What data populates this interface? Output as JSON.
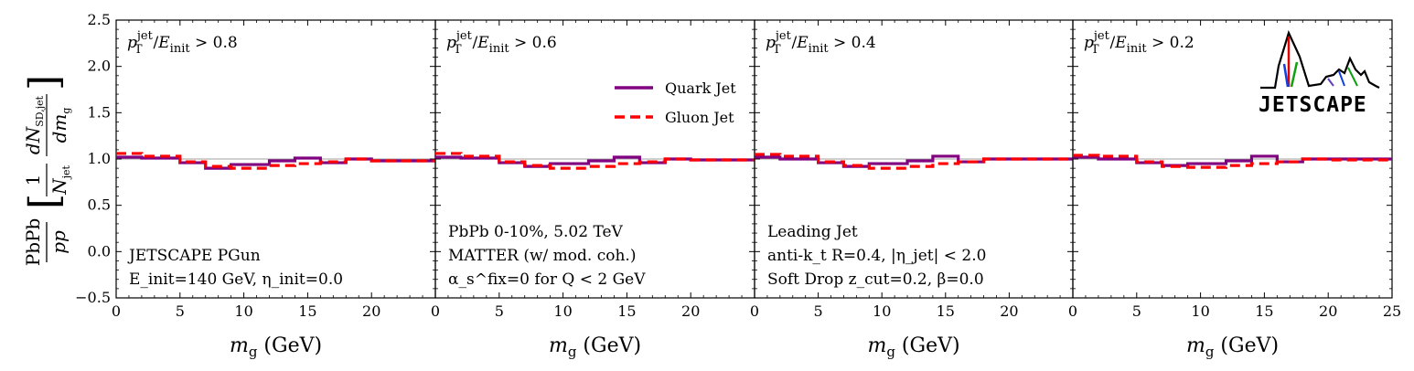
{
  "figure": {
    "y_label_main": "PbPb / pp",
    "y_label_bracket": "[ 1/N_jet dN_SD,jet/dm_g ]",
    "logo_text": "JETSCAPE"
  },
  "legend": {
    "quark_label": "Quark Jet",
    "gluon_label": "Gluon Jet"
  },
  "colors": {
    "quark": "#800080",
    "gluon": "#ff0000",
    "reference_line": "#a0a0a0"
  },
  "chart_data": [
    {
      "type": "line",
      "panel_title": "p_T^jet/E_init > 0.8",
      "xlabel": "m_g (GeV)",
      "xlim": [
        0,
        25
      ],
      "ylim": [
        -0.5,
        2.5
      ],
      "xticks": [
        "0",
        "5",
        "10",
        "15",
        "20"
      ],
      "yticks": [
        "−0.5",
        "0.0",
        "0.5",
        "1.0",
        "1.5",
        "2.0",
        "2.5"
      ],
      "bin_edges": [
        0,
        2,
        5,
        7,
        9,
        12,
        14,
        16,
        18,
        20,
        25
      ],
      "series": [
        {
          "name": "Quark Jet",
          "values": [
            1.02,
            1.01,
            0.96,
            0.9,
            0.94,
            0.98,
            1.01,
            0.96,
            1.0,
            0.98
          ]
        },
        {
          "name": "Gluon Jet",
          "values": [
            1.06,
            1.03,
            0.97,
            0.92,
            0.9,
            0.93,
            0.95,
            0.97,
            1.0,
            0.98
          ]
        }
      ],
      "annotations": [
        "JETSCAPE PGun",
        "E_init=140 GeV, η_init=0.0"
      ]
    },
    {
      "type": "line",
      "panel_title": "p_T^jet/E_init > 0.6",
      "xlabel": "m_g (GeV)",
      "xlim": [
        0,
        25
      ],
      "ylim": [
        -0.5,
        2.5
      ],
      "xticks": [
        "0",
        "5",
        "10",
        "15",
        "20"
      ],
      "bin_edges": [
        0,
        2,
        5,
        7,
        9,
        12,
        14,
        16,
        18,
        20,
        25
      ],
      "series": [
        {
          "name": "Quark Jet",
          "values": [
            1.02,
            1.01,
            0.96,
            0.92,
            0.95,
            0.98,
            1.02,
            0.96,
            1.0,
            0.99
          ]
        },
        {
          "name": "Gluon Jet",
          "values": [
            1.06,
            1.03,
            0.97,
            0.93,
            0.9,
            0.92,
            0.95,
            0.97,
            1.0,
            0.99
          ]
        }
      ],
      "annotations": [
        "PbPb 0-10%, 5.02 TeV",
        "MATTER (w/ mod. coh.)",
        "α_s^fix=0 for Q < 2 GeV"
      ]
    },
    {
      "type": "line",
      "panel_title": "p_T^jet/E_init > 0.4",
      "xlabel": "m_g (GeV)",
      "xlim": [
        0,
        25
      ],
      "ylim": [
        -0.5,
        2.5
      ],
      "xticks": [
        "0",
        "5",
        "10",
        "15",
        "20"
      ],
      "bin_edges": [
        0,
        2,
        5,
        7,
        9,
        12,
        14,
        16,
        18,
        20,
        25
      ],
      "series": [
        {
          "name": "Quark Jet",
          "values": [
            1.02,
            1.0,
            0.96,
            0.92,
            0.95,
            0.98,
            1.03,
            0.97,
            1.0,
            1.0
          ]
        },
        {
          "name": "Gluon Jet",
          "values": [
            1.05,
            1.03,
            0.97,
            0.93,
            0.9,
            0.92,
            0.95,
            0.97,
            1.0,
            1.0
          ]
        }
      ],
      "annotations": [
        "Leading Jet",
        "anti-k_t R=0.4, |η_jet| < 2.0",
        "Soft Drop z_cut=0.2, β=0.0"
      ]
    },
    {
      "type": "line",
      "panel_title": "p_T^jet/E_init > 0.2",
      "xlabel": "m_g (GeV)",
      "xlim": [
        0,
        25
      ],
      "ylim": [
        -0.5,
        2.5
      ],
      "xticks": [
        "0",
        "5",
        "10",
        "15",
        "20",
        "25"
      ],
      "bin_edges": [
        0,
        2,
        5,
        7,
        9,
        12,
        14,
        16,
        18,
        20,
        25
      ],
      "series": [
        {
          "name": "Quark Jet",
          "values": [
            1.02,
            1.0,
            0.96,
            0.93,
            0.95,
            0.98,
            1.03,
            0.97,
            1.0,
            1.0
          ]
        },
        {
          "name": "Gluon Jet",
          "values": [
            1.04,
            1.03,
            0.97,
            0.92,
            0.91,
            0.93,
            0.95,
            0.97,
            1.0,
            0.99
          ]
        }
      ],
      "annotations": []
    }
  ]
}
